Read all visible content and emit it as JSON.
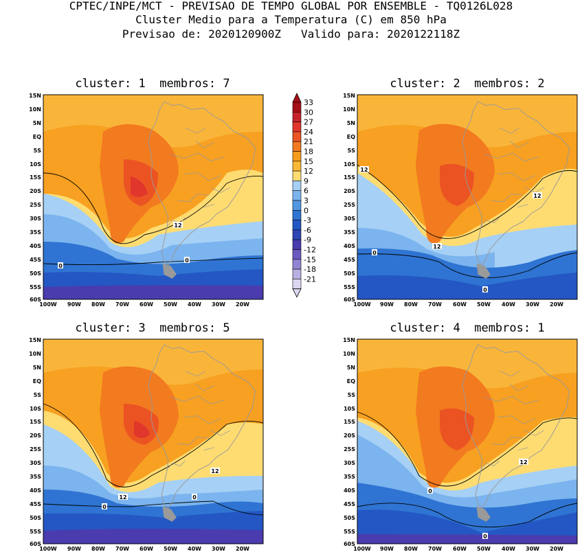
{
  "header": {
    "line1": "CPTEC/INPE/MCT - PREVISAO DE TEMPO GLOBAL POR ENSEMBLE - TQ0126L028",
    "line2": "Cluster Medio para a Temperatura (C) em 850 hPa",
    "line3": "Previsao de: 2020120900Z   Valido para: 2020122118Z"
  },
  "panels": [
    {
      "title": "cluster: 1  membros: 7",
      "contour_labels": [
        "12",
        "0",
        "0"
      ]
    },
    {
      "title": "cluster: 2  membros: 2",
      "contour_labels": [
        "12",
        "12",
        "12",
        "0",
        "0"
      ]
    },
    {
      "title": "cluster: 3  membros: 5",
      "contour_labels": [
        "12",
        "12",
        "0",
        "0"
      ]
    },
    {
      "title": "cluster: 4  membros: 1",
      "contour_labels": [
        "12",
        "0",
        "0"
      ]
    }
  ],
  "lat_ticks": [
    "15N",
    "10N",
    "5N",
    "EQ",
    "5S",
    "10S",
    "15S",
    "20S",
    "25S",
    "30S",
    "35S",
    "40S",
    "45S",
    "50S",
    "55S",
    "60S"
  ],
  "lon_ticks": [
    "100W",
    "90W",
    "80W",
    "70W",
    "60W",
    "50W",
    "40W",
    "30W",
    "20W"
  ],
  "colorbar": {
    "labels": [
      "33",
      "30",
      "27",
      "24",
      "21",
      "18",
      "15",
      "12",
      "9",
      "6",
      "3",
      "0",
      "-3",
      "-6",
      "-9",
      "-12",
      "-15",
      "-18",
      "-21"
    ],
    "colors": [
      "#a50f15",
      "#c8232a",
      "#e0362b",
      "#eb5323",
      "#f27a1f",
      "#f79d1e",
      "#fbb935",
      "#fedc72",
      "#a6d0f5",
      "#7bb4ee",
      "#5197e3",
      "#2f74d2",
      "#2457c4",
      "#2f45b4",
      "#4a3cae",
      "#6b5ac0",
      "#9284d2",
      "#b9b0e2",
      "#ddd6f2"
    ]
  },
  "legend_colors": {
    "land_outline": "#9a9a9a",
    "contour": "#000000"
  }
}
